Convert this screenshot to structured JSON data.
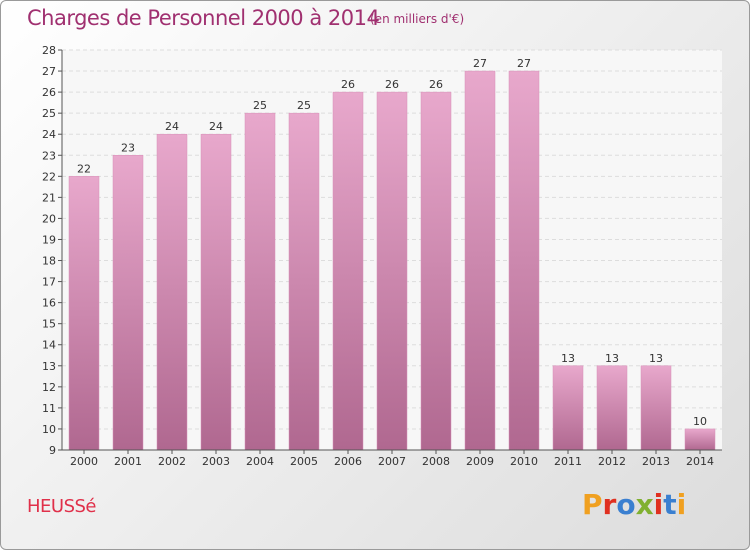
{
  "header": {
    "title": "Charges de Personnel 2000 à 2014",
    "subtitle": "(en milliers d'€)"
  },
  "footer": {
    "city": "HEUSSé",
    "logo_text": "Proxiti",
    "logo_colors": [
      "#f0a020",
      "#e03020",
      "#3a7fd0",
      "#80b030",
      "#e03020",
      "#3a7fd0",
      "#f0a020"
    ]
  },
  "chart_data": {
    "type": "bar",
    "categories": [
      "2000",
      "2001",
      "2002",
      "2003",
      "2004",
      "2005",
      "2006",
      "2007",
      "2008",
      "2009",
      "2010",
      "2011",
      "2012",
      "2013",
      "2014"
    ],
    "values": [
      22,
      23,
      24,
      24,
      25,
      25,
      26,
      26,
      26,
      27,
      27,
      13,
      13,
      13,
      10
    ],
    "ylim": [
      9,
      28
    ],
    "yticks": [
      9,
      10,
      11,
      12,
      13,
      14,
      15,
      16,
      17,
      18,
      19,
      20,
      21,
      22,
      23,
      24,
      25,
      26,
      27,
      28
    ],
    "grid": true,
    "bar_color": "#e8a8cc",
    "bar_color_dark": "#b06890"
  }
}
